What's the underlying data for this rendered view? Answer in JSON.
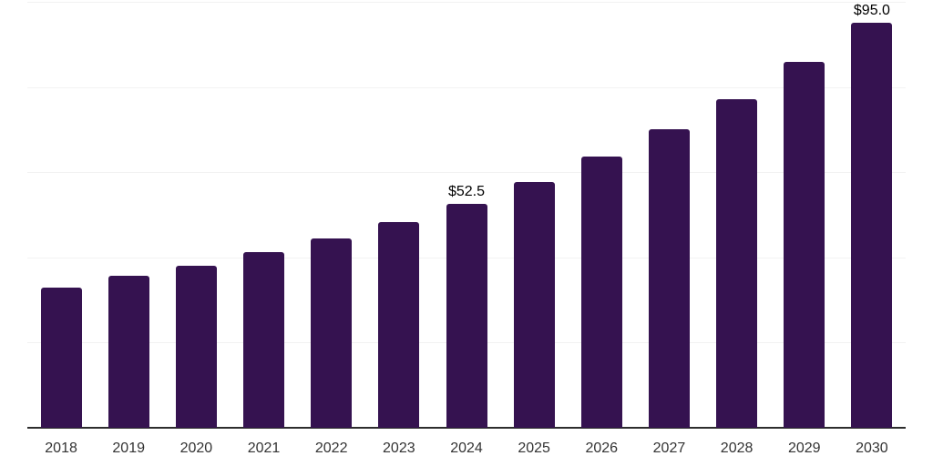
{
  "colors": {
    "background": "#ffffff",
    "bar": "#351250",
    "axis_line": "#2d2d2d",
    "gridline": "#f2f2f2",
    "tick_label": "#333333",
    "data_label": "#000000"
  },
  "chart_data": {
    "type": "bar",
    "title": "",
    "xlabel": "",
    "ylabel": "",
    "categories": [
      "2018",
      "2019",
      "2020",
      "2021",
      "2022",
      "2023",
      "2024",
      "2025",
      "2026",
      "2027",
      "2028",
      "2029",
      "2030"
    ],
    "values": [
      33.0,
      35.7,
      38.0,
      41.2,
      44.4,
      48.3,
      52.5,
      57.7,
      63.7,
      70.1,
      77.1,
      85.9,
      95.0
    ],
    "value_labels": [
      "",
      "",
      "",
      "",
      "",
      "",
      "$52.5",
      "",
      "",
      "",
      "",
      "",
      "$95.0"
    ],
    "ylim": [
      0,
      100
    ],
    "gridline_values": [
      20,
      40,
      60,
      80,
      100
    ],
    "grid": "horizontal",
    "legend_position": "none",
    "y_tick_labels_visible": false
  }
}
